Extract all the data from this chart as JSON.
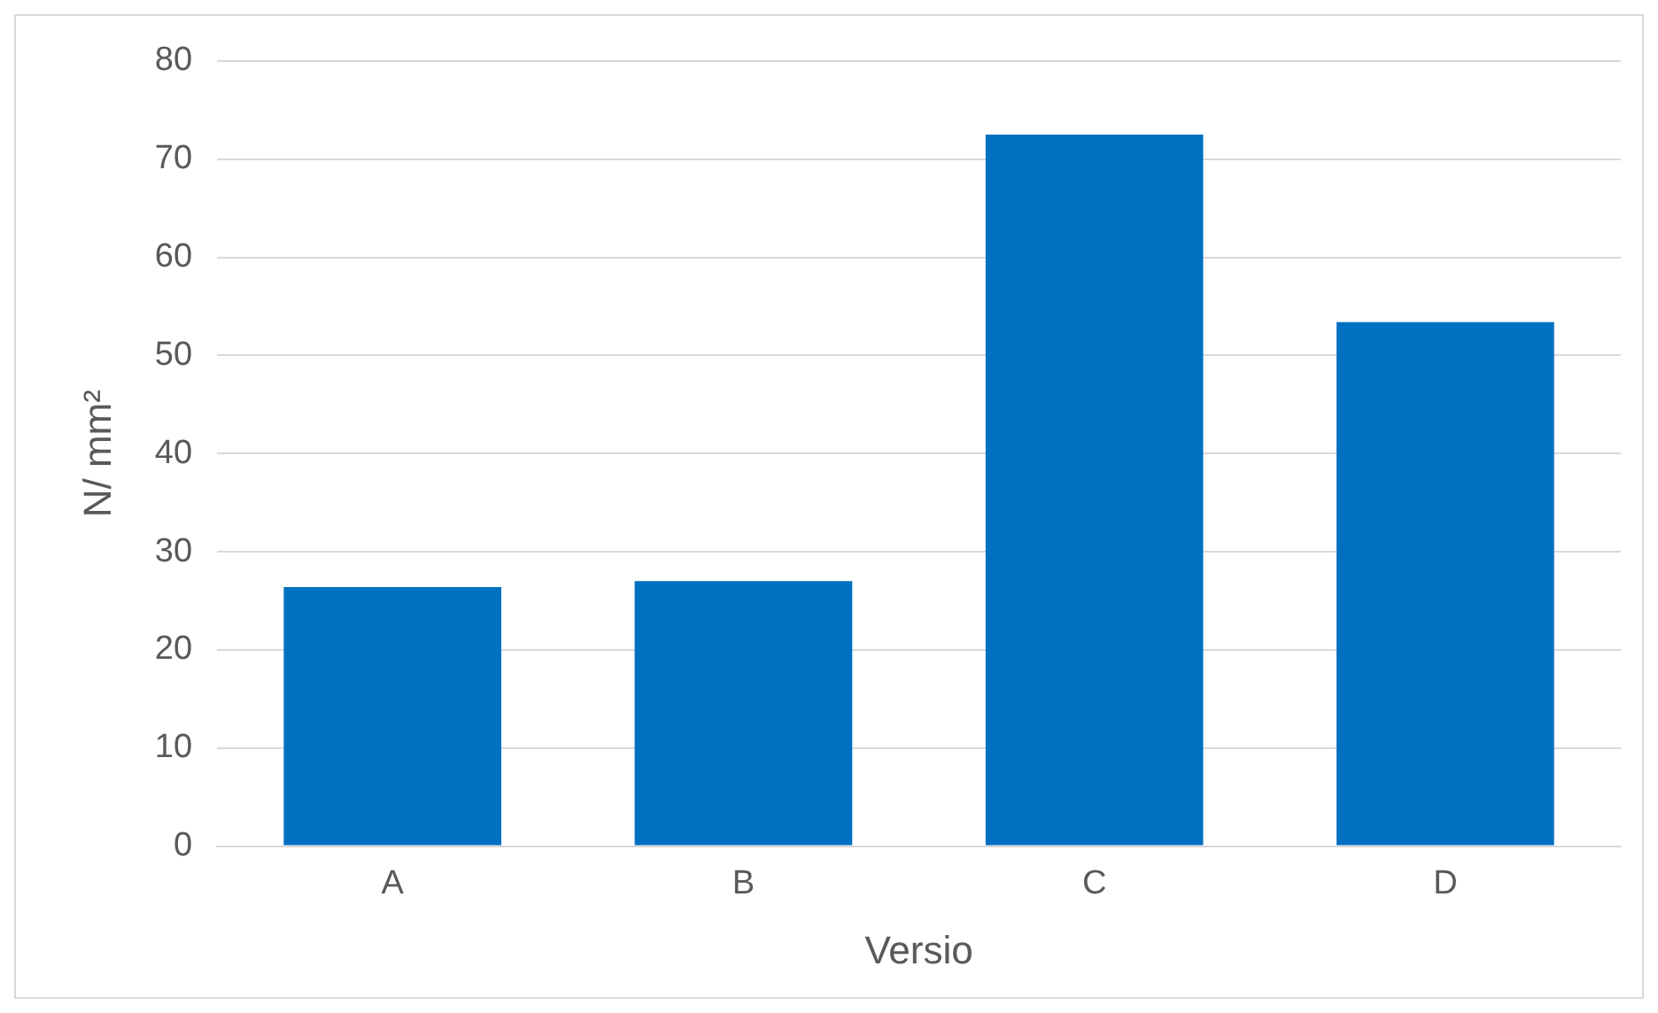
{
  "chart_data": {
    "type": "bar",
    "xlabel": "Versio",
    "ylabel": "N/ mm²",
    "categories": [
      "A",
      "B",
      "C",
      "D"
    ],
    "values": [
      26.4,
      27,
      72.5,
      53.4
    ],
    "color": "#0070c0",
    "ylim": [
      0,
      80
    ],
    "yticks": [
      0,
      10,
      20,
      30,
      40,
      50,
      60,
      70,
      80
    ],
    "grid": "y"
  }
}
